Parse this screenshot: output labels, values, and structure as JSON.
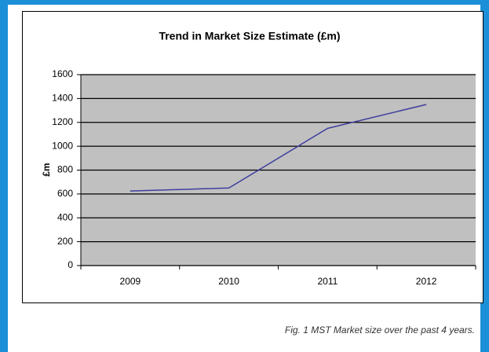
{
  "chart_data": {
    "type": "line",
    "title": "Trend in Market Size Estimate (£m)",
    "y_label": "£m",
    "categories": [
      "2009",
      "2010",
      "2011",
      "2012"
    ],
    "values": [
      625,
      650,
      1150,
      1350
    ],
    "color": "#3f3f9f",
    "ylim": [
      0,
      1600
    ],
    "yticks": [
      0,
      200,
      400,
      600,
      800,
      1000,
      1200,
      1400,
      1600
    ],
    "grid": true,
    "caption": "Fig. 1 MST Market size over the past 4 years."
  }
}
